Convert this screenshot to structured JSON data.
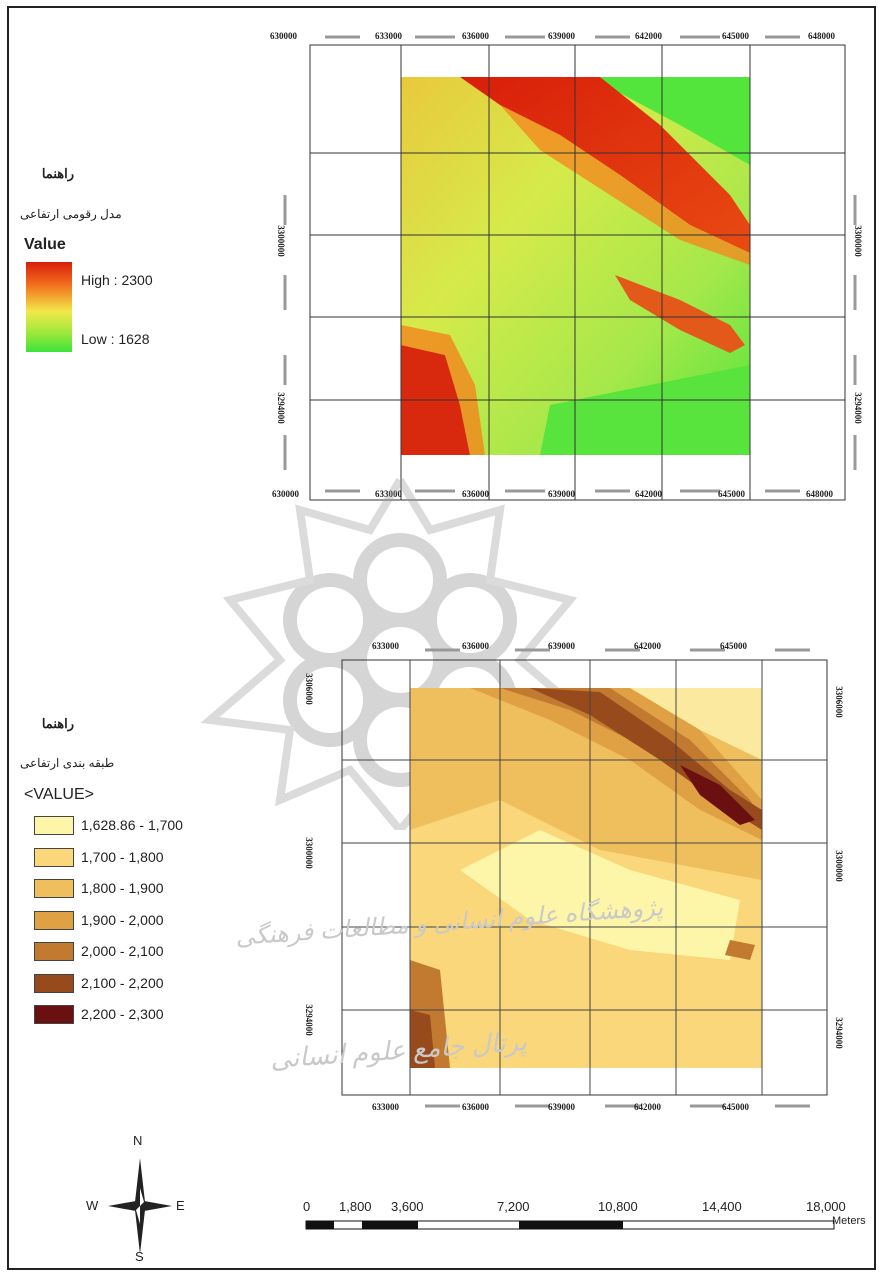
{
  "map1": {
    "legend_title": "راهنما",
    "legend_subtitle": "مدل رقومی ارتفاعی",
    "legend_field": "Value",
    "high_label": "High : 2300",
    "low_label": "Low : 1628",
    "x_ticks": [
      "630000",
      "633000",
      "636000",
      "639000",
      "642000",
      "645000",
      "648000"
    ],
    "y_ticks": [
      "3300000",
      "3294000"
    ]
  },
  "map2": {
    "legend_title": "راهنما",
    "legend_subtitle": "طبقه بندی ارتفاعی",
    "legend_field": "<VALUE>",
    "classes": [
      {
        "label": "1,628.86 - 1,700",
        "color": "#fdf5a8"
      },
      {
        "label": "1,700 - 1,800",
        "color": "#f9d77a"
      },
      {
        "label": "1,800 - 1,900",
        "color": "#efbf5e"
      },
      {
        "label": "1,900 - 2,000",
        "color": "#e0a145"
      },
      {
        "label": "2,000 - 2,100",
        "color": "#c17a30"
      },
      {
        "label": "2,100 - 2,200",
        "color": "#974a1c"
      },
      {
        "label": "2,200 - 2,300",
        "color": "#6b1010"
      }
    ],
    "x_ticks": [
      "633000",
      "636000",
      "639000",
      "642000",
      "645000"
    ],
    "y_ticks": [
      "3306000",
      "3300000",
      "3294000"
    ]
  },
  "scale_bar": {
    "labels": [
      "0",
      "1,800",
      "3,600",
      "7,200",
      "10,800",
      "14,400",
      "18,000"
    ],
    "unit": "Meters"
  },
  "north_arrow": {
    "n": "N",
    "s": "S",
    "e": "E",
    "w": "W"
  },
  "watermark": {
    "line1": "پژوهشگاه علوم انسانی و مطالعات فرهنگی",
    "line2": "پرتال جامع علوم انسانی"
  },
  "colors": {
    "dem_high": "#d81e0a",
    "dem_mid": "#f2e84a",
    "dem_low": "#3de33a"
  }
}
